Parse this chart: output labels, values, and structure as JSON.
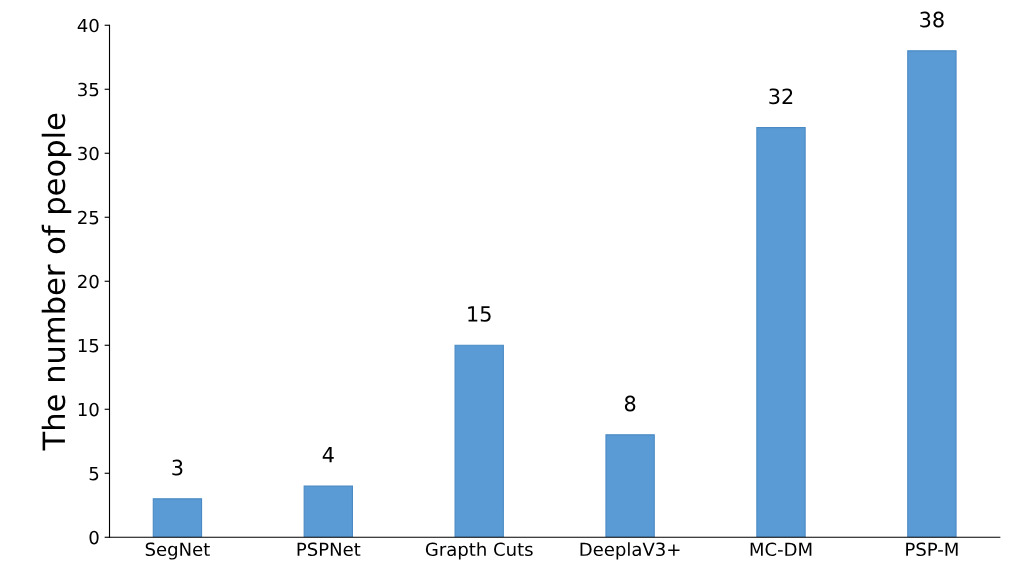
{
  "chart_data": {
    "type": "bar",
    "ylabel": "The number of people",
    "categories": [
      "SegNet",
      "PSPNet",
      "Grapth Cuts",
      "DeeplaV3+",
      "MC-DM",
      "PSP-M"
    ],
    "values": [
      3,
      4,
      15,
      8,
      32,
      38
    ],
    "color": "#5b9bd5",
    "ylim": [
      0,
      40
    ],
    "yticks": [
      0,
      5,
      10,
      15,
      20,
      25,
      30,
      35,
      40
    ],
    "grid": false,
    "data_labels": true
  }
}
